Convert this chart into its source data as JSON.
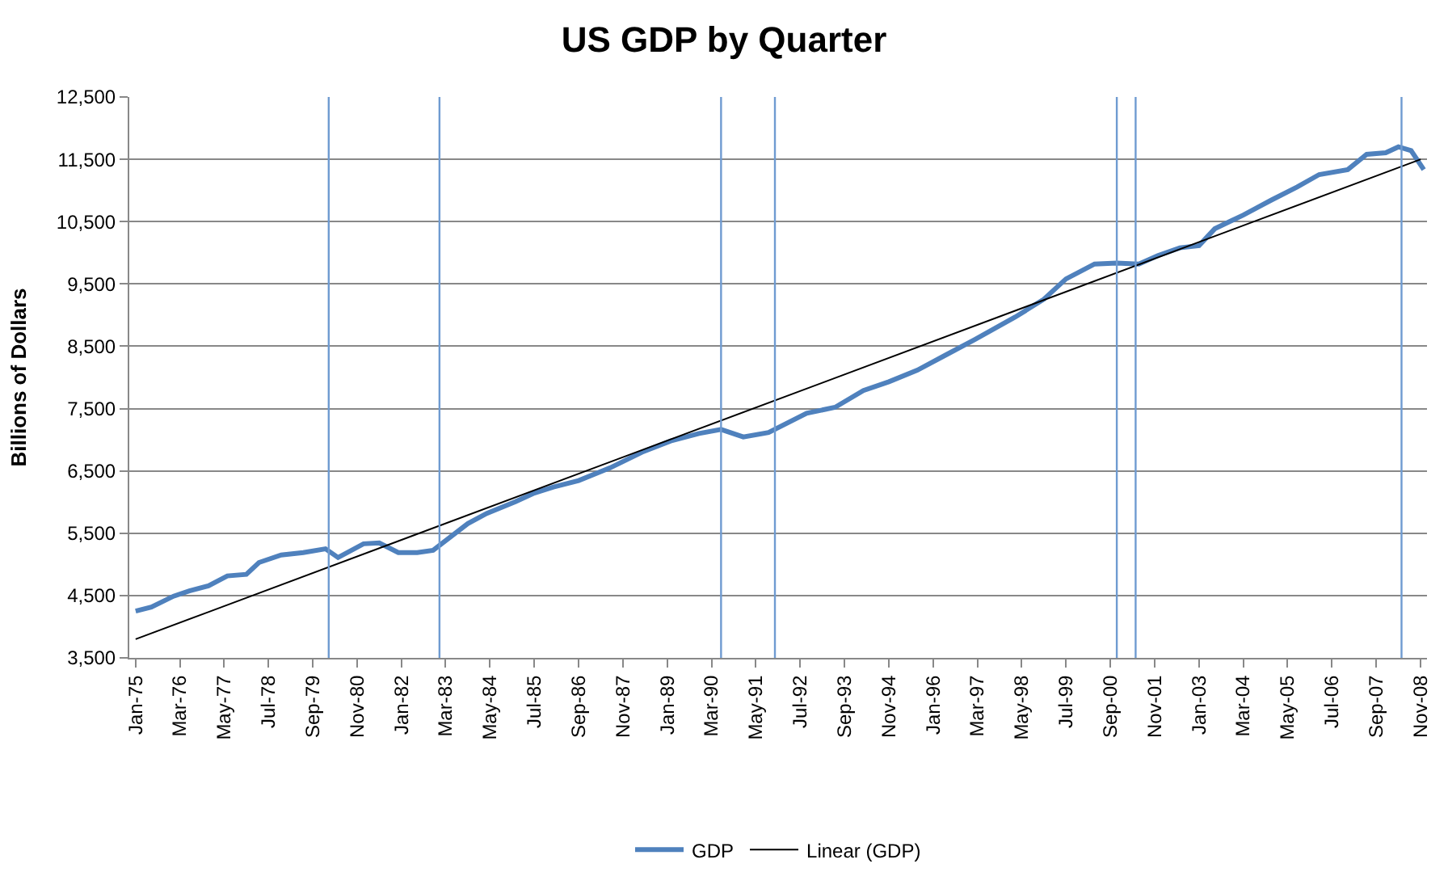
{
  "chart_data": {
    "type": "line",
    "title": "US GDP by Quarter",
    "ylabel": "Billions of Dollars",
    "series": [
      {
        "name": "GDP",
        "color": "#4f81bd",
        "x": [
          "1975-01",
          "1975-06",
          "1976-01",
          "1976-06",
          "1976-12",
          "1977-06",
          "1977-12",
          "1978-04",
          "1978-11",
          "1979-06",
          "1980-01",
          "1980-05",
          "1981-01",
          "1981-06",
          "1981-12",
          "1982-06",
          "1982-11",
          "1983-10",
          "1984-04",
          "1985-01",
          "1985-07",
          "1986-01",
          "1986-09",
          "1987-07",
          "1988-05",
          "1989-02",
          "1989-11",
          "1990-06",
          "1991-01",
          "1991-09",
          "1992-09",
          "1993-06",
          "1994-03",
          "1994-11",
          "1995-08",
          "1996-05",
          "1997-02",
          "1998-03",
          "1998-12",
          "1999-07",
          "2000-04",
          "2000-11",
          "2001-06",
          "2001-12",
          "2002-07",
          "2003-01",
          "2003-06",
          "2004-03",
          "2004-12",
          "2005-08",
          "2006-03",
          "2006-12",
          "2007-06",
          "2007-12",
          "2008-04",
          "2008-08",
          "2008-12"
        ],
        "values": [
          4250,
          4315,
          4490,
          4575,
          4655,
          4815,
          4840,
          5030,
          5150,
          5190,
          5250,
          5110,
          5330,
          5345,
          5190,
          5190,
          5225,
          5655,
          5820,
          6005,
          6145,
          6240,
          6345,
          6550,
          6800,
          6980,
          7100,
          7165,
          7045,
          7115,
          7425,
          7520,
          7790,
          7930,
          8115,
          8360,
          8605,
          8970,
          9255,
          9580,
          9820,
          9835,
          9820,
          9955,
          10080,
          10115,
          10385,
          10605,
          10850,
          11055,
          11255,
          11335,
          11580,
          11605,
          11700,
          11640,
          11335
        ]
      },
      {
        "name": "Linear (GDP)",
        "color": "#000000",
        "x": [
          "1975-01",
          "2008-11"
        ],
        "values": [
          3800,
          11500
        ]
      }
    ],
    "xlim": [
      "1974-11",
      "2009-01"
    ],
    "xticks": [
      {
        "value": "1975-01",
        "label": "Jan-75"
      },
      {
        "value": "1976-03",
        "label": "Mar-76"
      },
      {
        "value": "1977-05",
        "label": "May-77"
      },
      {
        "value": "1978-07",
        "label": "Jul-78"
      },
      {
        "value": "1979-09",
        "label": "Sep-79"
      },
      {
        "value": "1980-11",
        "label": "Nov-80"
      },
      {
        "value": "1982-01",
        "label": "Jan-82"
      },
      {
        "value": "1983-03",
        "label": "Mar-83"
      },
      {
        "value": "1984-05",
        "label": "May-84"
      },
      {
        "value": "1985-07",
        "label": "Jul-85"
      },
      {
        "value": "1986-09",
        "label": "Sep-86"
      },
      {
        "value": "1987-11",
        "label": "Nov-87"
      },
      {
        "value": "1989-01",
        "label": "Jan-89"
      },
      {
        "value": "1990-03",
        "label": "Mar-90"
      },
      {
        "value": "1991-05",
        "label": "May-91"
      },
      {
        "value": "1992-07",
        "label": "Jul-92"
      },
      {
        "value": "1993-09",
        "label": "Sep-93"
      },
      {
        "value": "1994-11",
        "label": "Nov-94"
      },
      {
        "value": "1996-01",
        "label": "Jan-96"
      },
      {
        "value": "1997-03",
        "label": "Mar-97"
      },
      {
        "value": "1998-05",
        "label": "May-98"
      },
      {
        "value": "1999-07",
        "label": "Jul-99"
      },
      {
        "value": "2000-09",
        "label": "Sep-00"
      },
      {
        "value": "2001-11",
        "label": "Nov-01"
      },
      {
        "value": "2003-01",
        "label": "Jan-03"
      },
      {
        "value": "2004-03",
        "label": "Mar-04"
      },
      {
        "value": "2005-05",
        "label": "May-05"
      },
      {
        "value": "2006-07",
        "label": "Jul-06"
      },
      {
        "value": "2007-09",
        "label": "Sep-07"
      },
      {
        "value": "2008-11",
        "label": "Nov-08"
      }
    ],
    "ylim": [
      3500,
      12500
    ],
    "yticks": [
      {
        "value": 3500,
        "label": "3,500"
      },
      {
        "value": 4500,
        "label": "4,500"
      },
      {
        "value": 5500,
        "label": "5,500"
      },
      {
        "value": 6500,
        "label": "6,500"
      },
      {
        "value": 7500,
        "label": "7,500"
      },
      {
        "value": 8500,
        "label": "8,500"
      },
      {
        "value": 9500,
        "label": "9,500"
      },
      {
        "value": 10500,
        "label": "10,500"
      },
      {
        "value": 11500,
        "label": "11,500"
      },
      {
        "value": 12500,
        "label": "12,500"
      }
    ],
    "ref_lines": [
      {
        "axis": "x",
        "value": "1980-02",
        "color": "#6f9bd1"
      },
      {
        "axis": "x",
        "value": "1983-01",
        "color": "#6f9bd1"
      },
      {
        "axis": "x",
        "value": "1990-06",
        "color": "#6f9bd1"
      },
      {
        "axis": "x",
        "value": "1991-11",
        "color": "#6f9bd1"
      },
      {
        "axis": "x",
        "value": "2000-11",
        "color": "#6f9bd1"
      },
      {
        "axis": "x",
        "value": "2001-05",
        "color": "#6f9bd1"
      },
      {
        "axis": "x",
        "value": "2008-05",
        "color": "#6f9bd1"
      }
    ],
    "grid": "y",
    "legend": "bottom",
    "marker": "none",
    "line_style": "solid"
  }
}
